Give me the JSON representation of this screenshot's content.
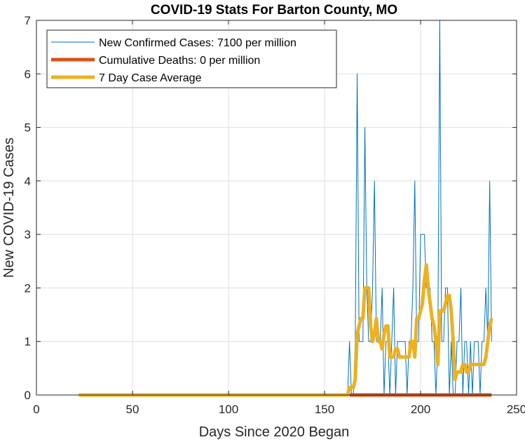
{
  "chart_data": {
    "type": "line",
    "title": "COVID-19 Stats For Barton County, MO",
    "xlabel": "Days Since 2020 Began",
    "ylabel": "New COVID-19 Cases",
    "xlim": [
      0,
      250
    ],
    "ylim": [
      0,
      7
    ],
    "xticks": [
      0,
      50,
      100,
      150,
      200,
      250
    ],
    "yticks": [
      0,
      1,
      2,
      3,
      4,
      5,
      6,
      7
    ],
    "grid": true,
    "legend_position": "top-left",
    "series": [
      {
        "name": "New Confirmed Cases: 7100 per million",
        "color": "#0072BD",
        "style": "thin",
        "x": [
          22,
          160,
          161,
          162,
          163,
          164,
          165,
          166,
          167,
          168,
          169,
          170,
          171,
          172,
          173,
          174,
          175,
          176,
          177,
          178,
          179,
          180,
          181,
          182,
          183,
          184,
          185,
          186,
          187,
          188,
          189,
          190,
          191,
          192,
          193,
          194,
          195,
          196,
          197,
          198,
          199,
          200,
          201,
          202,
          203,
          204,
          205,
          206,
          207,
          208,
          209,
          210,
          211,
          212,
          213,
          214,
          215,
          216,
          217,
          218,
          219,
          220,
          221,
          222,
          223,
          224,
          225,
          226,
          227,
          228,
          229,
          230,
          231,
          232,
          233,
          234,
          235,
          236,
          237
        ],
        "values": [
          0,
          0,
          0,
          0,
          1,
          0,
          0,
          1,
          6,
          1,
          1,
          1,
          5,
          2,
          1,
          1,
          2,
          4,
          1,
          1,
          1,
          2,
          0,
          1,
          1,
          0,
          1,
          2,
          0,
          1,
          1,
          1,
          1,
          1,
          0,
          1,
          1,
          2,
          4,
          1,
          1,
          3,
          3,
          3,
          2,
          2,
          2,
          1,
          1,
          0,
          1,
          7,
          1,
          1,
          2,
          2,
          0,
          1,
          0,
          0,
          1,
          1,
          2,
          0,
          1,
          1,
          0,
          1,
          0,
          1,
          1,
          1,
          0,
          1,
          1,
          2,
          1,
          4,
          1
        ]
      },
      {
        "name": "Cumulative Deaths: 0 per million",
        "color": "#D95319",
        "style": "thick",
        "x": [
          163,
          237
        ],
        "values": [
          0,
          0
        ]
      },
      {
        "name": "7 Day Case Average",
        "color": "#EDB120",
        "style": "thick",
        "x": [
          22,
          162,
          163,
          164,
          165,
          166,
          167,
          168,
          169,
          170,
          171,
          172,
          173,
          174,
          175,
          176,
          177,
          178,
          179,
          180,
          181,
          182,
          183,
          184,
          185,
          186,
          187,
          188,
          189,
          190,
          191,
          192,
          193,
          194,
          195,
          196,
          197,
          198,
          199,
          200,
          201,
          202,
          203,
          204,
          205,
          206,
          207,
          208,
          209,
          210,
          211,
          212,
          213,
          214,
          215,
          216,
          217,
          218,
          219,
          220,
          221,
          222,
          223,
          224,
          225,
          226,
          227,
          228,
          229,
          230,
          231,
          232,
          233,
          234,
          235,
          236,
          237
        ],
        "values": [
          0,
          0,
          0.14,
          0.14,
          0.14,
          0.29,
          1.14,
          1.29,
          1.43,
          1.43,
          2.0,
          2.0,
          2.0,
          1.29,
          1.0,
          1.14,
          1.43,
          1.0,
          1.0,
          0.86,
          1.14,
          1.29,
          1.29,
          0.71,
          0.71,
          0.71,
          0.86,
          0.86,
          0.71,
          0.71,
          0.71,
          0.71,
          0.71,
          0.71,
          1.0,
          1.0,
          0.71,
          1.43,
          1.43,
          1.57,
          1.71,
          2.14,
          2.43,
          2.0,
          1.71,
          1.43,
          1.29,
          1.0,
          0.57,
          1.57,
          1.57,
          1.57,
          1.71,
          1.86,
          1.86,
          1.57,
          1.0,
          0.29,
          0.43,
          0.43,
          0.43,
          0.57,
          0.57,
          0.43,
          0.43,
          0.57,
          0.57,
          0.57,
          0.57,
          0.57,
          0.57,
          0.57,
          0.57,
          0.71,
          1.0,
          1.29,
          1.43
        ]
      }
    ]
  }
}
